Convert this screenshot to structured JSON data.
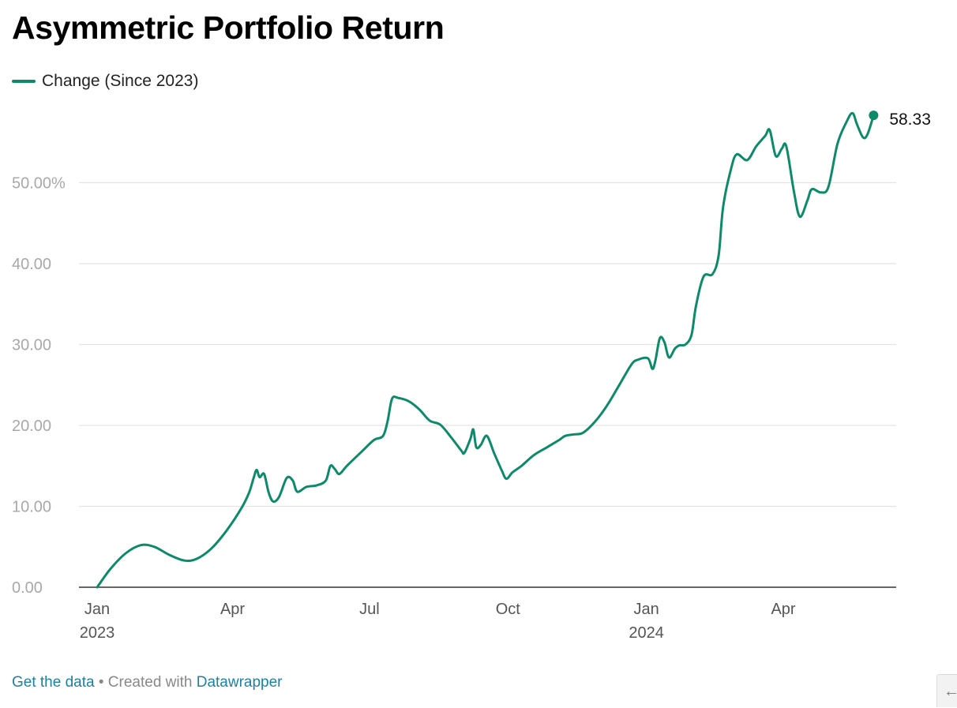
{
  "chart_data": {
    "type": "line",
    "title": "Asymmetric Portfolio Return",
    "xlabel": "",
    "ylabel": "",
    "ylim": [
      0,
      60
    ],
    "y_ticks": [
      {
        "value": 0,
        "label": "0.00"
      },
      {
        "value": 10,
        "label": "10.00"
      },
      {
        "value": 20,
        "label": "20.00"
      },
      {
        "value": 30,
        "label": "30.00"
      },
      {
        "value": 40,
        "label": "40.00"
      },
      {
        "value": 50,
        "label": "50.00%"
      }
    ],
    "x_range": [
      "2023-01-01",
      "2024-06-10"
    ],
    "x_ticks": [
      {
        "date": "2023-01-01",
        "label": "Jan",
        "sublabel": "2023"
      },
      {
        "date": "2023-04-01",
        "label": "Apr",
        "sublabel": ""
      },
      {
        "date": "2023-07-01",
        "label": "Jul",
        "sublabel": ""
      },
      {
        "date": "2023-10-01",
        "label": "Oct",
        "sublabel": ""
      },
      {
        "date": "2024-01-01",
        "label": "Jan",
        "sublabel": "2024"
      },
      {
        "date": "2024-04-01",
        "label": "Apr",
        "sublabel": ""
      }
    ],
    "grid": true,
    "legend": "top-left",
    "series": [
      {
        "name": "Change (Since 2023)",
        "color": "#0d8a6a",
        "end_label": "58.33",
        "points": [
          [
            "2023-01-01",
            0
          ],
          [
            "2023-01-10",
            2.3
          ],
          [
            "2023-01-20",
            4.2
          ],
          [
            "2023-01-30",
            5.2
          ],
          [
            "2023-02-08",
            5.0
          ],
          [
            "2023-02-18",
            4.0
          ],
          [
            "2023-02-28",
            3.3
          ],
          [
            "2023-03-08",
            3.5
          ],
          [
            "2023-03-18",
            4.8
          ],
          [
            "2023-03-28",
            7.0
          ],
          [
            "2023-04-07",
            9.8
          ],
          [
            "2023-04-12",
            11.7
          ],
          [
            "2023-04-15",
            13.5
          ],
          [
            "2023-04-17",
            14.5
          ],
          [
            "2023-04-19",
            13.6
          ],
          [
            "2023-04-22",
            14.0
          ],
          [
            "2023-04-25",
            11.7
          ],
          [
            "2023-04-28",
            10.6
          ],
          [
            "2023-05-02",
            11.2
          ],
          [
            "2023-05-07",
            13.5
          ],
          [
            "2023-05-11",
            13.2
          ],
          [
            "2023-05-14",
            11.8
          ],
          [
            "2023-05-20",
            12.4
          ],
          [
            "2023-05-27",
            12.6
          ],
          [
            "2023-06-02",
            13.2
          ],
          [
            "2023-06-05",
            15.0
          ],
          [
            "2023-06-08",
            14.6
          ],
          [
            "2023-06-11",
            14.0
          ],
          [
            "2023-06-16",
            15.0
          ],
          [
            "2023-06-26",
            16.8
          ],
          [
            "2023-07-04",
            18.2
          ],
          [
            "2023-07-10",
            18.7
          ],
          [
            "2023-07-13",
            20.5
          ],
          [
            "2023-07-16",
            23.3
          ],
          [
            "2023-07-20",
            23.4
          ],
          [
            "2023-07-27",
            23.0
          ],
          [
            "2023-08-03",
            22.0
          ],
          [
            "2023-08-10",
            20.6
          ],
          [
            "2023-08-17",
            20.1
          ],
          [
            "2023-08-24",
            18.6
          ],
          [
            "2023-08-31",
            16.9
          ],
          [
            "2023-09-02",
            16.6
          ],
          [
            "2023-09-06",
            18.3
          ],
          [
            "2023-09-08",
            19.5
          ],
          [
            "2023-09-10",
            17.3
          ],
          [
            "2023-09-13",
            17.6
          ],
          [
            "2023-09-17",
            18.7
          ],
          [
            "2023-09-22",
            16.5
          ],
          [
            "2023-09-27",
            14.4
          ],
          [
            "2023-09-30",
            13.4
          ],
          [
            "2023-10-04",
            14.2
          ],
          [
            "2023-10-10",
            15.0
          ],
          [
            "2023-10-18",
            16.3
          ],
          [
            "2023-10-27",
            17.3
          ],
          [
            "2023-11-04",
            18.2
          ],
          [
            "2023-11-08",
            18.7
          ],
          [
            "2023-11-14",
            18.9
          ],
          [
            "2023-11-20",
            19.1
          ],
          [
            "2023-11-28",
            20.5
          ],
          [
            "2023-12-06",
            22.5
          ],
          [
            "2023-12-14",
            25.0
          ],
          [
            "2023-12-22",
            27.5
          ],
          [
            "2023-12-26",
            28.1
          ],
          [
            "2024-01-02",
            28.3
          ],
          [
            "2024-01-05",
            27.0
          ],
          [
            "2024-01-07",
            28.0
          ],
          [
            "2024-01-10",
            30.8
          ],
          [
            "2024-01-13",
            30.3
          ],
          [
            "2024-01-16",
            28.4
          ],
          [
            "2024-01-20",
            29.5
          ],
          [
            "2024-01-23",
            29.9
          ],
          [
            "2024-01-27",
            30.0
          ],
          [
            "2024-01-31",
            31.2
          ],
          [
            "2024-02-03",
            34.8
          ],
          [
            "2024-02-08",
            38.4
          ],
          [
            "2024-02-14",
            38.7
          ],
          [
            "2024-02-18",
            41.0
          ],
          [
            "2024-02-21",
            47.0
          ],
          [
            "2024-02-26",
            51.5
          ],
          [
            "2024-03-01",
            53.5
          ],
          [
            "2024-03-08",
            52.8
          ],
          [
            "2024-03-14",
            54.5
          ],
          [
            "2024-03-20",
            55.8
          ],
          [
            "2024-03-23",
            56.5
          ],
          [
            "2024-03-27",
            53.3
          ],
          [
            "2024-03-31",
            54.2
          ],
          [
            "2024-04-03",
            54.5
          ],
          [
            "2024-04-08",
            49.0
          ],
          [
            "2024-04-12",
            45.8
          ],
          [
            "2024-04-17",
            47.8
          ],
          [
            "2024-04-20",
            49.2
          ],
          [
            "2024-04-26",
            48.8
          ],
          [
            "2024-05-01",
            49.5
          ],
          [
            "2024-05-07",
            54.8
          ],
          [
            "2024-05-13",
            57.5
          ],
          [
            "2024-05-17",
            58.6
          ],
          [
            "2024-05-20",
            57.2
          ],
          [
            "2024-05-24",
            55.6
          ],
          [
            "2024-05-27",
            56.0
          ],
          [
            "2024-05-31",
            58.33
          ]
        ]
      }
    ]
  },
  "footer": {
    "get_data": "Get the data",
    "separator": " • Created with ",
    "datawrapper": "Datawrapper"
  },
  "corner_button_icon": "arrow-left-icon",
  "corner_button_glyph": "←"
}
